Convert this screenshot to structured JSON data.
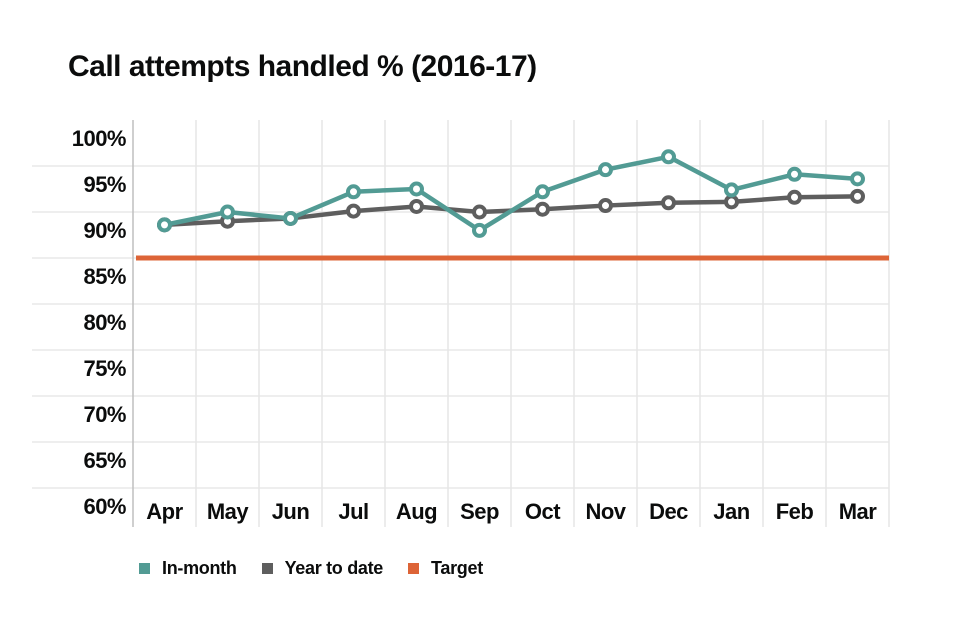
{
  "title": "Call attempts handled % (2016-17)",
  "chart_data": {
    "type": "line",
    "title": "Call attempts handled % (2016-17)",
    "categories": [
      "Apr",
      "May",
      "Jun",
      "Jul",
      "Aug",
      "Sep",
      "Oct",
      "Nov",
      "Dec",
      "Jan",
      "Feb",
      "Mar"
    ],
    "y_tick_labels": [
      "100%",
      "95%",
      "90%",
      "85%",
      "80%",
      "75%",
      "70%",
      "65%",
      "60%"
    ],
    "y_tick_values": [
      100,
      95,
      90,
      85,
      80,
      75,
      70,
      65,
      60
    ],
    "ylim": [
      60,
      100
    ],
    "grid": true,
    "legend_position": "bottom",
    "series": [
      {
        "name": "In-month",
        "style": "line-markers",
        "color": "#529b94",
        "values": [
          88.6,
          90.0,
          89.3,
          92.2,
          92.5,
          88.0,
          92.2,
          94.6,
          96.0,
          92.4,
          94.1,
          93.6
        ]
      },
      {
        "name": "Year to date",
        "style": "line-markers",
        "color": "#5e5e5e",
        "values": [
          88.6,
          89.0,
          89.3,
          90.1,
          90.6,
          90.0,
          90.3,
          90.7,
          91.0,
          91.1,
          91.6,
          91.7
        ]
      },
      {
        "name": "Target",
        "style": "flat-line",
        "color": "#dd6437",
        "value": 85
      }
    ]
  }
}
